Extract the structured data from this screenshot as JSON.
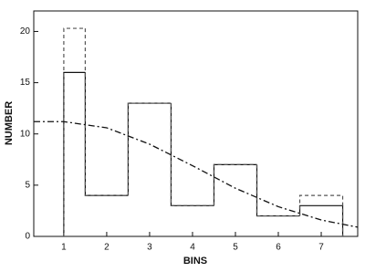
{
  "chart_data": {
    "type": "histogram",
    "xlabel": "BINS",
    "ylabel": "NUMBER",
    "bins": [
      1,
      1.5,
      2.5,
      3.5,
      4.5,
      5.5,
      6.5,
      7.5
    ],
    "series": [
      {
        "color": "#111111",
        "style": "solid",
        "values": [
          16,
          4,
          13,
          3,
          7,
          2,
          3
        ]
      },
      {
        "color": "#555555",
        "style": "dashed",
        "values": [
          20.3,
          4,
          13,
          3,
          7,
          2,
          4
        ]
      }
    ],
    "curve": {
      "color": "#111111",
      "style": "dashdot",
      "x": [
        0.3,
        1,
        2,
        3,
        4,
        5,
        6,
        7,
        7.85
      ],
      "values": [
        11.2,
        11.2,
        10.6,
        9.0,
        6.9,
        4.7,
        2.9,
        1.6,
        0.9
      ]
    },
    "xlim": [
      0.3,
      7.85
    ],
    "ylim": [
      0,
      22
    ],
    "xticks": [
      1,
      2,
      3,
      4,
      5,
      6,
      7
    ],
    "yticks": [
      0,
      5,
      10,
      15,
      20
    ]
  }
}
